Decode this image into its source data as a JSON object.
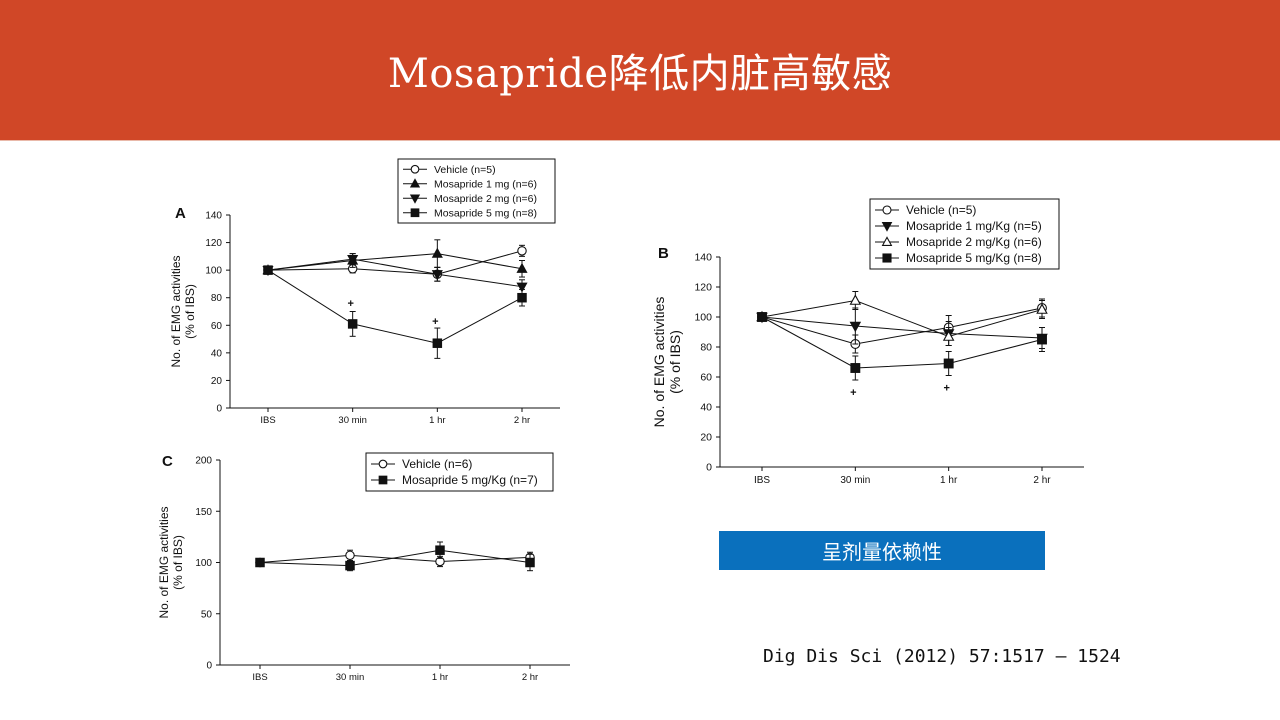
{
  "slide": {
    "title": "Mosapride降低内脏高敏感",
    "badge": "呈剂量依赖性",
    "citation": "Dig Dis Sci (2012) 57:1517 – 1524",
    "colors": {
      "header": "#D04727",
      "badge": "#0A70BD"
    }
  },
  "chart_data": [
    {
      "id": "A",
      "panel_label": "A",
      "type": "line",
      "categories": [
        "IBS",
        "30 min",
        "1 hr",
        "2 hr"
      ],
      "ylabel_lines": [
        "No. of EMG activities",
        "(% of IBS)"
      ],
      "ylim": [
        0,
        140
      ],
      "yticks": [
        0,
        20,
        40,
        60,
        80,
        100,
        120,
        140
      ],
      "legend_position": "top",
      "series": [
        {
          "name": "Vehicle (n=5)",
          "marker": "circle-open",
          "values": [
            100,
            101,
            97,
            114
          ],
          "errors": [
            0,
            3,
            5,
            4
          ]
        },
        {
          "name": "Mosapride 1 mg (n=6)",
          "marker": "triangle-up-filled",
          "values": [
            100,
            107,
            112,
            101
          ],
          "errors": [
            0,
            5,
            10,
            6
          ]
        },
        {
          "name": "Mosapride 2 mg (n=6)",
          "marker": "triangle-down-filled",
          "values": [
            100,
            108,
            97,
            88
          ],
          "errors": [
            0,
            4,
            5,
            5
          ]
        },
        {
          "name": "Mosapride 5 mg (n=8)",
          "marker": "square-filled",
          "values": [
            100,
            61,
            47,
            80
          ],
          "errors": [
            0,
            9,
            11,
            6
          ]
        }
      ],
      "annotations": [
        {
          "text": "+",
          "x": "30 min",
          "y": 76
        },
        {
          "text": "+",
          "x": "1 hr",
          "y": 63
        }
      ]
    },
    {
      "id": "B",
      "panel_label": "B",
      "type": "line",
      "categories": [
        "IBS",
        "30 min",
        "1 hr",
        "2 hr"
      ],
      "ylabel_lines": [
        "No. of EMG activities",
        "(% of IBS)"
      ],
      "ylim": [
        0,
        140
      ],
      "yticks": [
        0,
        20,
        40,
        60,
        80,
        100,
        120,
        140
      ],
      "legend_position": "top",
      "series": [
        {
          "name": "Vehicle (n=5)",
          "marker": "circle-open",
          "values": [
            100,
            82,
            93,
            106
          ],
          "errors": [
            0,
            6,
            8,
            6
          ]
        },
        {
          "name": "Mosapride 1 mg/Kg (n=5)",
          "marker": "triangle-down-filled",
          "values": [
            100,
            94,
            89,
            86
          ],
          "errors": [
            0,
            12,
            8,
            7
          ]
        },
        {
          "name": "Mosapride 2 mg/Kg (n=6)",
          "marker": "triangle-up-open",
          "values": [
            100,
            111,
            87,
            105
          ],
          "errors": [
            0,
            6,
            6,
            6
          ]
        },
        {
          "name": "Mosapride 5 mg/Kg (n=8)",
          "marker": "square-filled",
          "values": [
            100,
            66,
            69,
            85
          ],
          "errors": [
            0,
            8,
            8,
            8
          ]
        }
      ],
      "annotations": [
        {
          "text": "+",
          "x": "30 min",
          "y": 50
        },
        {
          "text": "+",
          "x": "1 hr",
          "y": 53
        }
      ]
    },
    {
      "id": "C",
      "panel_label": "C",
      "type": "line",
      "categories": [
        "IBS",
        "30 min",
        "1 hr",
        "2 hr"
      ],
      "ylabel_lines": [
        "No. of EMG activities",
        "(% of IBS)"
      ],
      "ylim": [
        0,
        200
      ],
      "yticks": [
        0,
        50,
        100,
        150,
        200
      ],
      "legend_position": "top-right",
      "series": [
        {
          "name": "Vehicle (n=6)",
          "marker": "circle-open",
          "values": [
            100,
            107,
            101,
            105
          ],
          "errors": [
            0,
            5,
            5,
            5
          ]
        },
        {
          "name": "Mosapride 5 mg/Kg (n=7)",
          "marker": "square-filled",
          "values": [
            100,
            97,
            112,
            100
          ],
          "errors": [
            0,
            5,
            8,
            8
          ]
        }
      ],
      "annotations": []
    }
  ]
}
